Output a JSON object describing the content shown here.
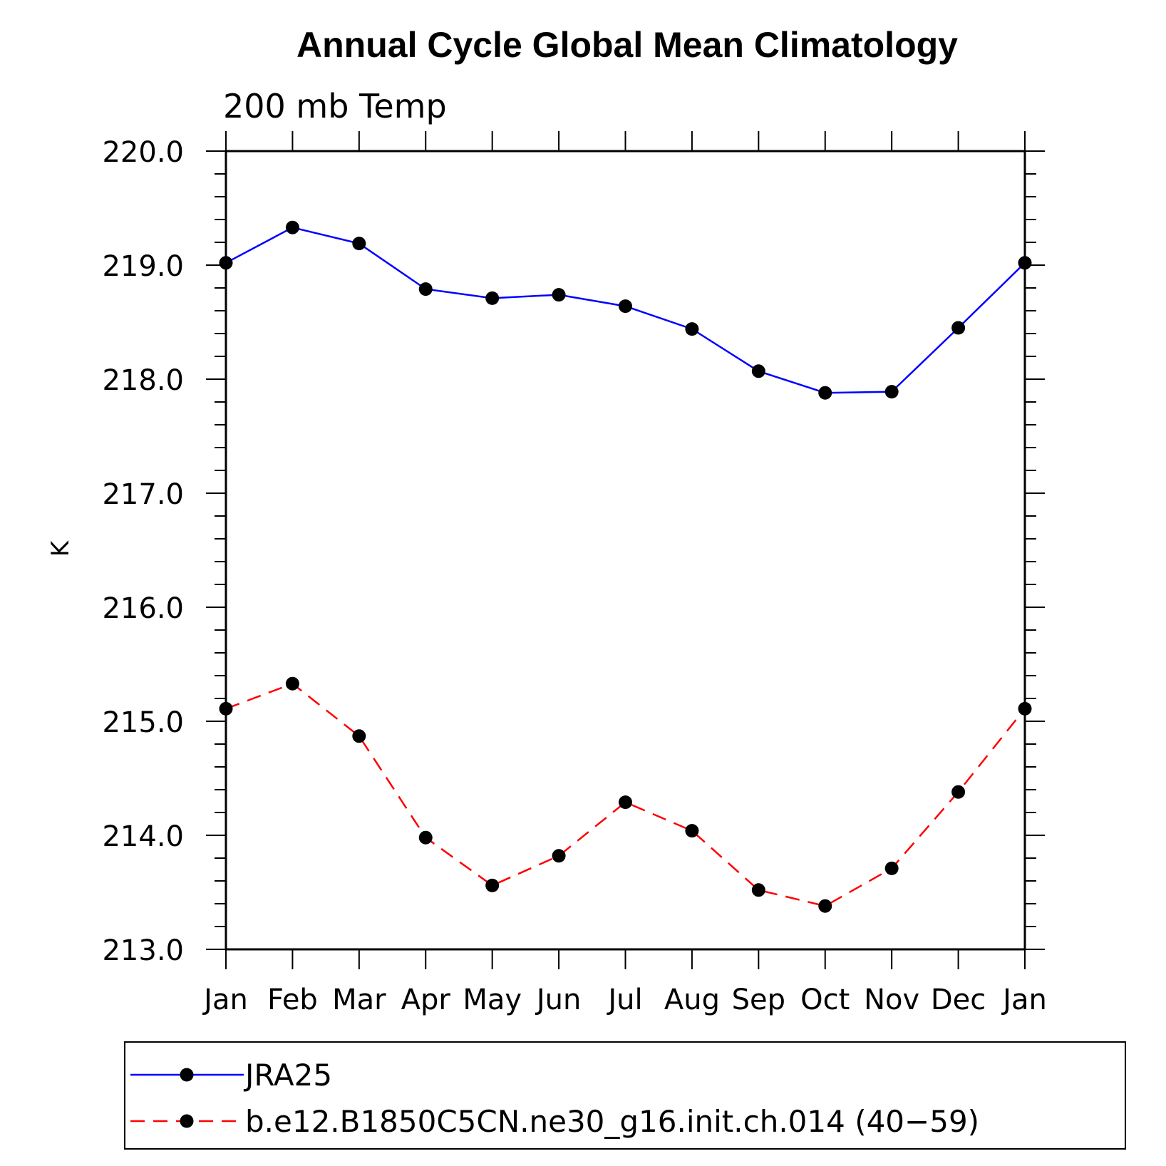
{
  "chart_data": {
    "type": "line",
    "title": "Annual Cycle Global Mean Climatology",
    "subtitle": "200 mb Temp",
    "xlabel": "",
    "ylabel": "K",
    "categories": [
      "Jan",
      "Feb",
      "Mar",
      "Apr",
      "May",
      "Jun",
      "Jul",
      "Aug",
      "Sep",
      "Oct",
      "Nov",
      "Dec",
      "Jan"
    ],
    "ylim": [
      213.0,
      220.0
    ],
    "yticks": [
      "213.0",
      "214.0",
      "215.0",
      "216.0",
      "217.0",
      "218.0",
      "219.0",
      "220.0"
    ],
    "grid": false,
    "legend_position": "bottom",
    "series": [
      {
        "name": "JRA25",
        "color": "#0000ff",
        "style": "solid",
        "marker": "circle",
        "values": [
          219.02,
          219.33,
          219.19,
          218.79,
          218.71,
          218.74,
          218.64,
          218.44,
          218.07,
          217.88,
          217.89,
          218.45,
          219.02
        ]
      },
      {
        "name": "b.e12.B1850C5CN.ne30_g16.init.ch.014 (40−59)",
        "color": "#ff0000",
        "style": "dashed",
        "marker": "circle",
        "values": [
          215.11,
          215.33,
          214.87,
          213.98,
          213.56,
          213.82,
          214.29,
          214.04,
          213.52,
          213.38,
          213.71,
          214.38,
          215.11
        ]
      }
    ]
  }
}
